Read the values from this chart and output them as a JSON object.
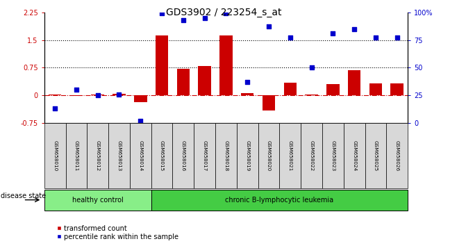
{
  "title": "GDS3902 / 223254_s_at",
  "samples": [
    "GSM658010",
    "GSM658011",
    "GSM658012",
    "GSM658013",
    "GSM658014",
    "GSM658015",
    "GSM658016",
    "GSM658017",
    "GSM658018",
    "GSM658019",
    "GSM658020",
    "GSM658021",
    "GSM658022",
    "GSM658023",
    "GSM658024",
    "GSM658025",
    "GSM658026"
  ],
  "bar_values": [
    0.02,
    -0.02,
    0.03,
    0.05,
    -0.18,
    1.62,
    0.72,
    0.8,
    1.62,
    0.06,
    -0.42,
    0.35,
    0.03,
    0.3,
    0.68,
    0.32,
    0.32
  ],
  "dot_values_pct": [
    13,
    30,
    25,
    26,
    2,
    99,
    93,
    95,
    99,
    37,
    87,
    77,
    50,
    81,
    85,
    77,
    77
  ],
  "bar_color": "#cc0000",
  "dot_color": "#0000cc",
  "healthy_count": 5,
  "disease_label_healthy": "healthy control",
  "disease_label_leukemia": "chronic B-lymphocytic leukemia",
  "disease_state_label": "disease state",
  "ylim_left": [
    -0.75,
    2.25
  ],
  "ylim_right": [
    0,
    100
  ],
  "yticks_left": [
    -0.75,
    0.0,
    0.75,
    1.5,
    2.25
  ],
  "yticks_right": [
    0,
    25,
    50,
    75,
    100
  ],
  "ytick_labels_left": [
    "-0.75",
    "0",
    "0.75",
    "1.5",
    "2.25"
  ],
  "ytick_labels_right": [
    "0",
    "25",
    "50",
    "75",
    "100%"
  ],
  "hline_dotted": [
    0.75,
    1.5
  ],
  "legend_bar": "transformed count",
  "legend_dot": "percentile rank within the sample",
  "title_fontsize": 10,
  "healthy_color": "#88ee88",
  "leukemia_color": "#44cc44"
}
